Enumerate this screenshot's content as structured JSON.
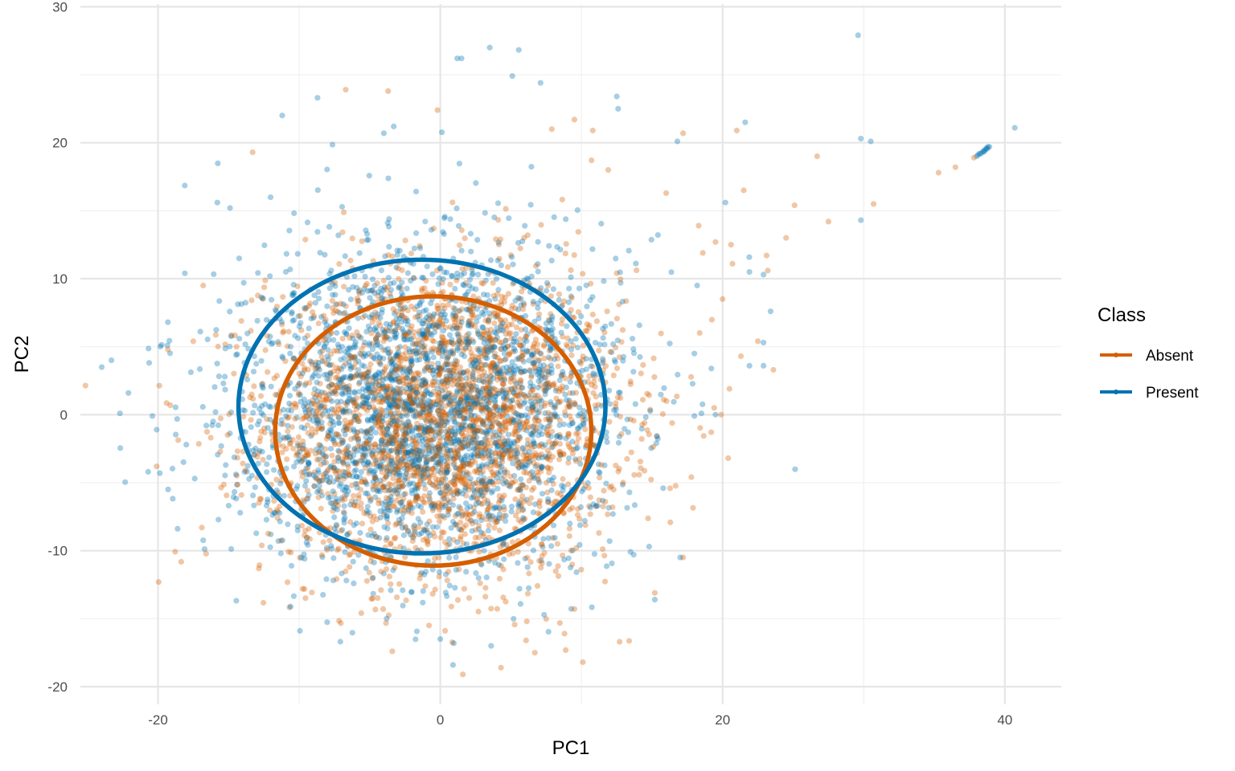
{
  "chart_data": {
    "type": "scatter",
    "title": "",
    "xlabel": "PC1",
    "ylabel": "PC2",
    "xlim": [
      -25.5,
      44
    ],
    "ylim": [
      -21.3,
      30.2
    ],
    "x_ticks": [
      -20,
      0,
      20,
      40
    ],
    "y_ticks": [
      -20,
      -10,
      0,
      10,
      20,
      30
    ],
    "x_tick_labels": [
      "-20",
      "0",
      "20",
      "40"
    ],
    "y_tick_labels": [
      "-20",
      "-10",
      "0",
      "10",
      "20",
      "30"
    ],
    "grid": true,
    "legend": {
      "title": "Class",
      "position": "right"
    },
    "point_alpha": 0.35,
    "series": [
      {
        "name": "Absent",
        "color": "#D55E00",
        "cloud": {
          "center": [
            0.3,
            -0.5
          ],
          "sd": [
            6.3,
            5.6
          ],
          "count": 2600
        },
        "ellipse": {
          "center": [
            -0.5,
            -1.2
          ],
          "rx": 11.2,
          "ry": 9.9
        },
        "outliers": [
          [
            36.5,
            18.2
          ],
          [
            35.3,
            17.8
          ],
          [
            37.8,
            18.9
          ],
          [
            30.7,
            15.5
          ],
          [
            27.5,
            14.2
          ],
          [
            26.7,
            19.0
          ],
          [
            25.1,
            15.4
          ],
          [
            24.5,
            13.0
          ],
          [
            23.6,
            3.3
          ],
          [
            21.5,
            16.5
          ],
          [
            21.3,
            4.3
          ],
          [
            21.0,
            20.9
          ],
          [
            20.7,
            11.1
          ],
          [
            20.4,
            -3.2
          ],
          [
            20.0,
            8.5
          ],
          [
            19.9,
            0.0
          ],
          [
            20.6,
            12.5
          ],
          [
            18.6,
            11.9
          ],
          [
            17.2,
            20.7
          ],
          [
            -16.9,
            -8.3
          ],
          [
            -17.5,
            5.4
          ],
          [
            -19.3,
            4.8
          ],
          [
            -20.1,
            -3.8
          ],
          [
            -16.8,
            9.5
          ],
          [
            -13.3,
            19.3
          ],
          [
            -6.7,
            23.9
          ],
          [
            -3.7,
            23.8
          ],
          [
            -0.2,
            22.4
          ],
          [
            7.9,
            21.0
          ],
          [
            9.5,
            21.7
          ],
          [
            10.8,
            20.9
          ],
          [
            11.9,
            18.0
          ],
          [
            16.0,
            16.3
          ],
          [
            18.3,
            13.9
          ],
          [
            19.5,
            12.7
          ],
          [
            6.7,
            -17.5
          ],
          [
            10.1,
            -18.2
          ],
          [
            12.7,
            -16.7
          ],
          [
            8.8,
            -16.1
          ],
          [
            -3.4,
            -17.4
          ],
          [
            -0.8,
            -15.5
          ],
          [
            4.3,
            -18.6
          ],
          [
            1.6,
            -19.1
          ],
          [
            17.2,
            -10.5
          ],
          [
            15.2,
            -13.1
          ],
          [
            22.5,
            5.4
          ],
          [
            23.2,
            10.6
          ]
        ]
      },
      {
        "name": "Present",
        "color": "#0072B2",
        "cloud": {
          "center": [
            -0.9,
            0.7
          ],
          "sd": [
            6.9,
            5.9
          ],
          "count": 2600
        },
        "ellipse": {
          "center": [
            -1.3,
            0.6
          ],
          "rx": 13.0,
          "ry": 10.8
        },
        "outliers": [
          [
            38.0,
            19.0
          ],
          [
            38.1,
            19.1
          ],
          [
            38.2,
            19.2
          ],
          [
            38.3,
            19.2
          ],
          [
            38.4,
            19.3
          ],
          [
            38.5,
            19.4
          ],
          [
            38.6,
            19.5
          ],
          [
            38.7,
            19.6
          ],
          [
            38.8,
            19.7
          ],
          [
            38.9,
            19.7
          ],
          [
            38.75,
            19.55
          ],
          [
            38.55,
            19.35
          ],
          [
            40.7,
            21.1
          ],
          [
            29.6,
            27.9
          ],
          [
            29.8,
            20.3
          ],
          [
            30.5,
            20.1
          ],
          [
            29.8,
            14.3
          ],
          [
            21.6,
            21.5
          ],
          [
            20.2,
            15.6
          ],
          [
            21.9,
            10.5
          ],
          [
            22.9,
            10.3
          ],
          [
            22.9,
            3.6
          ],
          [
            21.9,
            3.6
          ],
          [
            22.9,
            5.3
          ],
          [
            19.5,
            0.0
          ],
          [
            18.5,
            0.1
          ],
          [
            18.0,
            -0.1
          ],
          [
            19.2,
            3.4
          ],
          [
            18.0,
            4.5
          ],
          [
            18.2,
            9.5
          ],
          [
            23.4,
            7.6
          ],
          [
            -23.3,
            4.0
          ],
          [
            -22.7,
            0.1
          ],
          [
            -22.1,
            1.6
          ],
          [
            -20.4,
            -0.1
          ],
          [
            -20.7,
            -4.2
          ],
          [
            -20.1,
            -1.1
          ],
          [
            -19.3,
            6.8
          ],
          [
            -18.1,
            10.4
          ],
          [
            -15.8,
            15.6
          ],
          [
            -14.9,
            15.2
          ],
          [
            -17.4,
            -4.7
          ],
          [
            -18.0,
            -2.2
          ],
          [
            -15.2,
            -3.7
          ],
          [
            3.5,
            27.0
          ],
          [
            1.5,
            26.2
          ],
          [
            1.2,
            26.2
          ],
          [
            5.1,
            24.9
          ],
          [
            7.1,
            24.4
          ],
          [
            -11.2,
            22.0
          ],
          [
            -8.7,
            23.3
          ],
          [
            -3.3,
            21.2
          ],
          [
            0.9,
            -18.4
          ],
          [
            0.0,
            -16.5
          ],
          [
            3.6,
            -17.0
          ],
          [
            -3.8,
            -15.0
          ],
          [
            -11.3,
            -10.2
          ],
          [
            14.8,
            -9.7
          ],
          [
            13.7,
            -10.3
          ],
          [
            17.0,
            -10.5
          ],
          [
            15.2,
            -13.6
          ],
          [
            12.5,
            23.4
          ],
          [
            12.6,
            22.5
          ],
          [
            16.8,
            20.1
          ],
          [
            -4.0,
            20.7
          ]
        ]
      }
    ]
  }
}
